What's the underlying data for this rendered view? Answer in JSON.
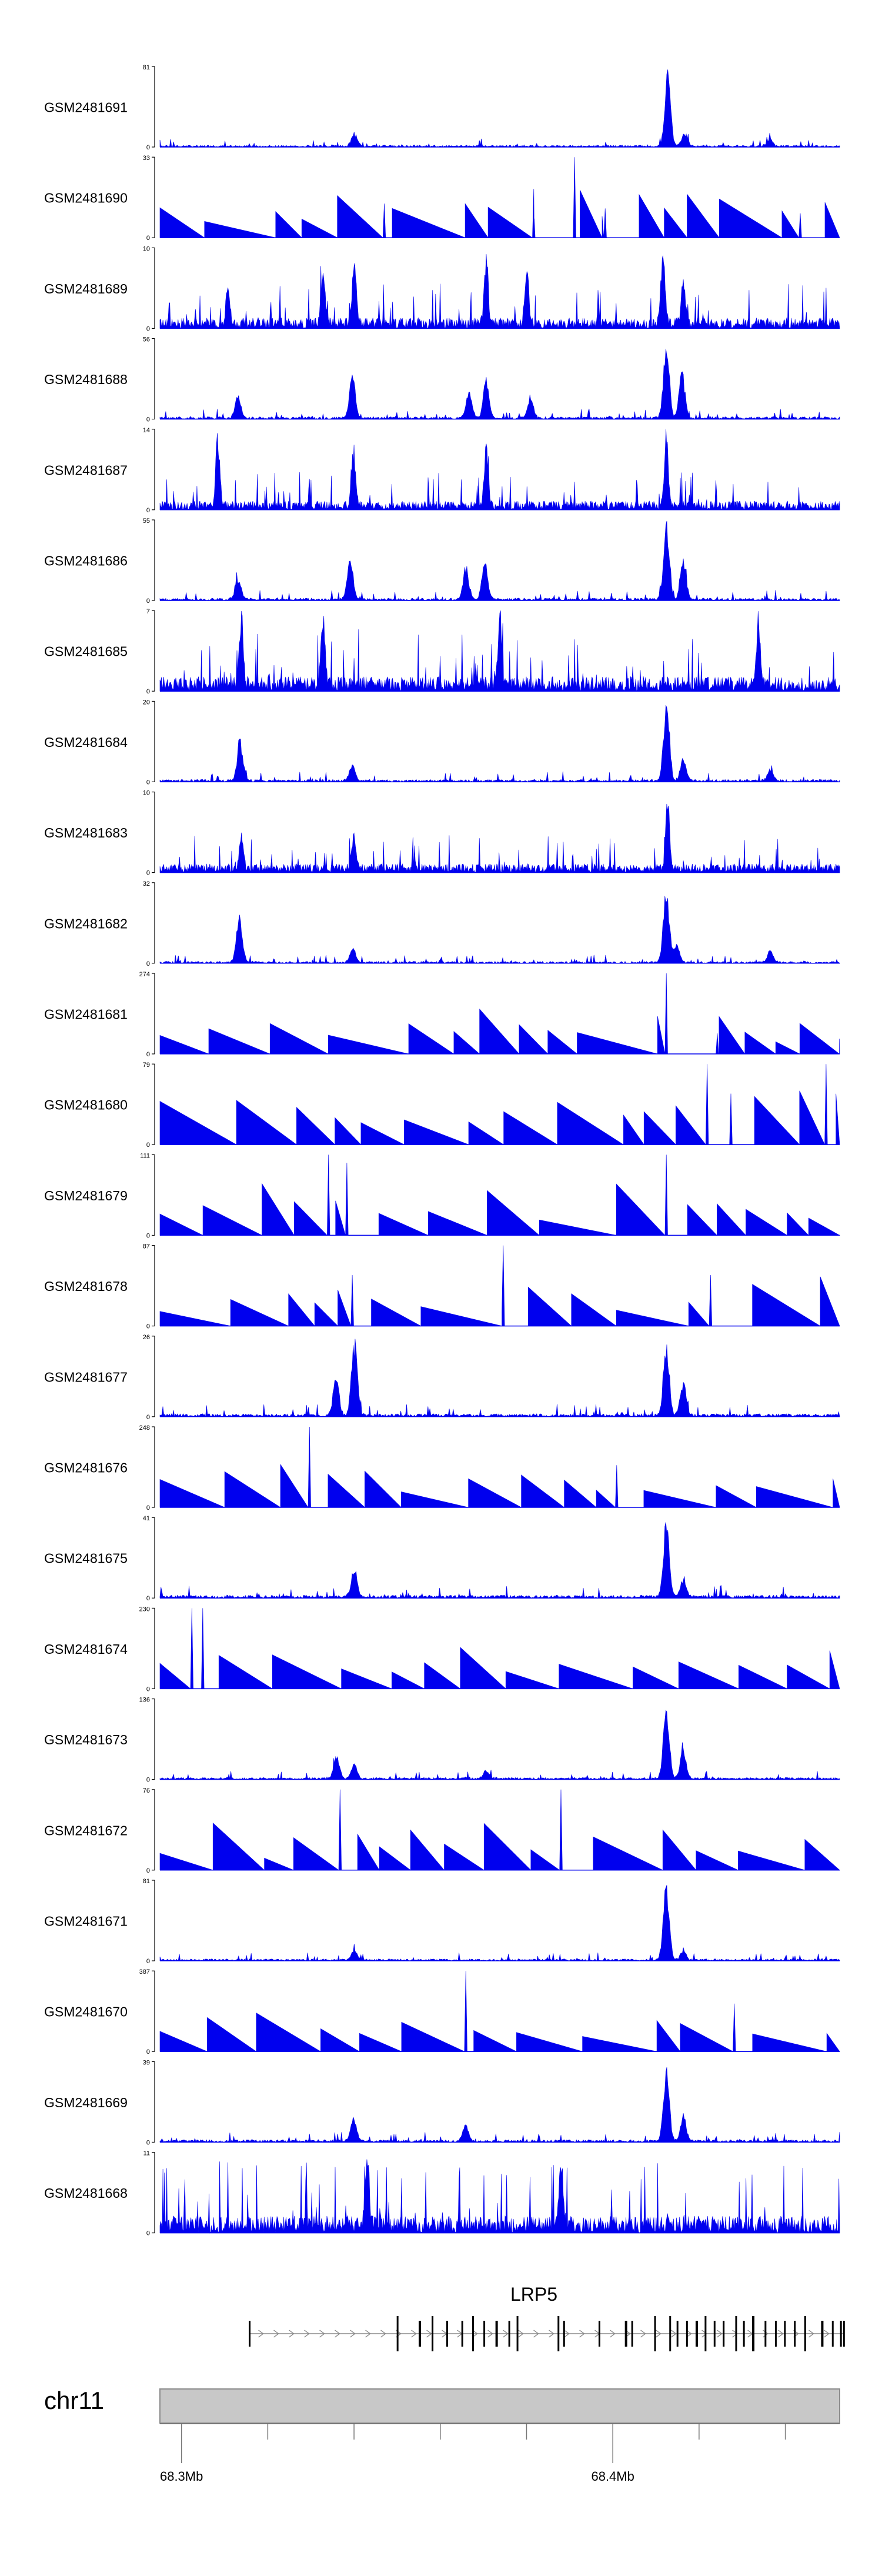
{
  "chart_data": {
    "type": "area",
    "title": "",
    "gene": {
      "label": "LRP5",
      "strand": "+",
      "start_mb": 68.3158,
      "end_mb": 68.4536,
      "exons_mb": [
        68.3158,
        68.3501,
        68.3552,
        68.3582,
        68.3616,
        68.3651,
        68.3676,
        68.3702,
        68.373,
        68.376,
        68.3779,
        68.3874,
        68.3887,
        68.3969,
        68.403,
        68.4045,
        68.4098,
        68.4133,
        68.415,
        68.4172,
        68.4194,
        68.4215,
        68.4236,
        68.4257,
        68.4286,
        68.4304,
        68.4325,
        68.4354,
        68.4378,
        68.4399,
        68.4422,
        68.4446,
        68.4485,
        68.451,
        68.4529,
        68.4536
      ]
    },
    "chromosome": {
      "label": "chr11",
      "xlim_mb": [
        68.295,
        68.4526
      ],
      "major_ticks_mb": [
        68.3,
        68.4
      ],
      "tick_labels": [
        "68.3Mb",
        "68.4Mb"
      ],
      "minor_ticks_mb": [
        68.32,
        68.34,
        68.36,
        68.38,
        68.42,
        68.44
      ]
    },
    "series": [
      {
        "name": "GSM2481691",
        "ymax": 81,
        "style": "smooth",
        "peaks": [
          [
            0.286,
            14
          ],
          [
            0.747,
            81
          ],
          [
            0.772,
            14
          ],
          [
            0.897,
            8
          ]
        ],
        "noise": 0.04,
        "seed": 11
      },
      {
        "name": "GSM2481690",
        "ymax": 33,
        "style": "tri",
        "peaks": [
          [
            0.33,
            14
          ],
          [
            0.55,
            20
          ],
          [
            0.61,
            33
          ],
          [
            0.655,
            12
          ],
          [
            0.942,
            10
          ]
        ],
        "noise": 0.35,
        "seed": 12
      },
      {
        "name": "GSM2481689",
        "ymax": 10,
        "style": "dense",
        "peaks": [
          [
            0.1,
            5
          ],
          [
            0.24,
            8
          ],
          [
            0.286,
            10
          ],
          [
            0.48,
            9
          ],
          [
            0.54,
            7
          ],
          [
            0.74,
            10
          ],
          [
            0.77,
            7
          ]
        ],
        "noise": 0.22,
        "seed": 13
      },
      {
        "name": "GSM2481688",
        "ymax": 56,
        "style": "smooth",
        "peaks": [
          [
            0.115,
            16
          ],
          [
            0.283,
            32
          ],
          [
            0.455,
            20
          ],
          [
            0.48,
            28
          ],
          [
            0.545,
            16
          ],
          [
            0.745,
            56
          ],
          [
            0.768,
            35
          ]
        ],
        "noise": 0.05,
        "seed": 14
      },
      {
        "name": "GSM2481687",
        "ymax": 14,
        "style": "dense",
        "peaks": [
          [
            0.085,
            14
          ],
          [
            0.285,
            11
          ],
          [
            0.48,
            12
          ],
          [
            0.745,
            13
          ]
        ],
        "noise": 0.18,
        "seed": 15
      },
      {
        "name": "GSM2481686",
        "ymax": 55,
        "style": "smooth",
        "peaks": [
          [
            0.115,
            16
          ],
          [
            0.28,
            32
          ],
          [
            0.45,
            22
          ],
          [
            0.478,
            28
          ],
          [
            0.745,
            55
          ],
          [
            0.77,
            30
          ]
        ],
        "noise": 0.05,
        "seed": 16
      },
      {
        "name": "GSM2481685",
        "ymax": 7,
        "style": "dense",
        "peaks": [
          [
            0.12,
            7
          ],
          [
            0.24,
            7
          ],
          [
            0.5,
            6
          ],
          [
            0.88,
            6
          ]
        ],
        "noise": 0.3,
        "seed": 17
      },
      {
        "name": "GSM2481684",
        "ymax": 20,
        "style": "smooth",
        "peaks": [
          [
            0.118,
            10
          ],
          [
            0.283,
            4
          ],
          [
            0.745,
            20
          ],
          [
            0.77,
            6
          ],
          [
            0.898,
            3
          ]
        ],
        "noise": 0.05,
        "seed": 18
      },
      {
        "name": "GSM2481683",
        "ymax": 10,
        "style": "dense",
        "peaks": [
          [
            0.12,
            5
          ],
          [
            0.285,
            5
          ],
          [
            0.747,
            10
          ]
        ],
        "noise": 0.18,
        "seed": 19
      },
      {
        "name": "GSM2481682",
        "ymax": 32,
        "style": "smooth",
        "peaks": [
          [
            0.117,
            21
          ],
          [
            0.284,
            6
          ],
          [
            0.745,
            32
          ],
          [
            0.76,
            8
          ],
          [
            0.898,
            5
          ]
        ],
        "noise": 0.04,
        "seed": 20
      },
      {
        "name": "GSM2481681",
        "ymax": 274,
        "style": "tri",
        "peaks": [
          [
            0.745,
            274
          ],
          [
            0.82,
            70
          ]
        ],
        "noise": 0.25,
        "seed": 21
      },
      {
        "name": "GSM2481680",
        "ymax": 79,
        "style": "tri",
        "peaks": [
          [
            0.805,
            79
          ],
          [
            0.84,
            50
          ],
          [
            0.98,
            79
          ]
        ],
        "noise": 0.45,
        "seed": 22
      },
      {
        "name": "GSM2481679",
        "ymax": 111,
        "style": "tri",
        "peaks": [
          [
            0.248,
            111
          ],
          [
            0.275,
            100
          ],
          [
            0.745,
            111
          ]
        ],
        "noise": 0.35,
        "seed": 23
      },
      {
        "name": "GSM2481678",
        "ymax": 87,
        "style": "tri",
        "peaks": [
          [
            0.283,
            55
          ],
          [
            0.505,
            87
          ],
          [
            0.81,
            55
          ]
        ],
        "noise": 0.35,
        "seed": 24
      },
      {
        "name": "GSM2481677",
        "ymax": 26,
        "style": "smooth",
        "peaks": [
          [
            0.259,
            14
          ],
          [
            0.286,
            26
          ],
          [
            0.745,
            25
          ],
          [
            0.77,
            12
          ]
        ],
        "noise": 0.06,
        "seed": 25
      },
      {
        "name": "GSM2481676",
        "ymax": 248,
        "style": "tri",
        "peaks": [
          [
            0.22,
            248
          ],
          [
            0.672,
            130
          ]
        ],
        "noise": 0.3,
        "seed": 26
      },
      {
        "name": "GSM2481675",
        "ymax": 41,
        "style": "smooth",
        "peaks": [
          [
            0.286,
            16
          ],
          [
            0.745,
            41
          ],
          [
            0.77,
            10
          ]
        ],
        "noise": 0.06,
        "seed": 27
      },
      {
        "name": "GSM2481674",
        "ymax": 230,
        "style": "tri",
        "peaks": [
          [
            0.047,
            230
          ],
          [
            0.063,
            230
          ]
        ],
        "noise": 0.25,
        "seed": 28
      },
      {
        "name": "GSM2481673",
        "ymax": 136,
        "style": "smooth",
        "peaks": [
          [
            0.26,
            40
          ],
          [
            0.286,
            28
          ],
          [
            0.48,
            16
          ],
          [
            0.745,
            136
          ],
          [
            0.77,
            55
          ]
        ],
        "noise": 0.04,
        "seed": 29
      },
      {
        "name": "GSM2481672",
        "ymax": 76,
        "style": "tri",
        "peaks": [
          [
            0.265,
            76
          ],
          [
            0.59,
            76
          ]
        ],
        "noise": 0.35,
        "seed": 30
      },
      {
        "name": "GSM2481671",
        "ymax": 81,
        "style": "smooth",
        "peaks": [
          [
            0.286,
            10
          ],
          [
            0.745,
            81
          ],
          [
            0.77,
            10
          ]
        ],
        "noise": 0.04,
        "seed": 31
      },
      {
        "name": "GSM2481670",
        "ymax": 387,
        "style": "tri",
        "peaks": [
          [
            0.45,
            387
          ],
          [
            0.845,
            230
          ]
        ],
        "noise": 0.25,
        "seed": 32
      },
      {
        "name": "GSM2481669",
        "ymax": 39,
        "style": "smooth",
        "peaks": [
          [
            0.285,
            12
          ],
          [
            0.45,
            9
          ],
          [
            0.745,
            39
          ],
          [
            0.77,
            14
          ]
        ],
        "noise": 0.05,
        "seed": 33
      },
      {
        "name": "GSM2481668",
        "ymax": 11,
        "style": "dense",
        "peaks": [
          [
            0.305,
            11
          ],
          [
            0.59,
            10
          ]
        ],
        "noise": 0.35,
        "seed": 34
      }
    ]
  },
  "colors": {
    "signal": "#0000ee",
    "axis": "#000000",
    "ideogram_fill": "#c8c8c8",
    "ideogram_stroke": "#8c8c8c",
    "gene": "#000000",
    "intron": "#888888"
  }
}
